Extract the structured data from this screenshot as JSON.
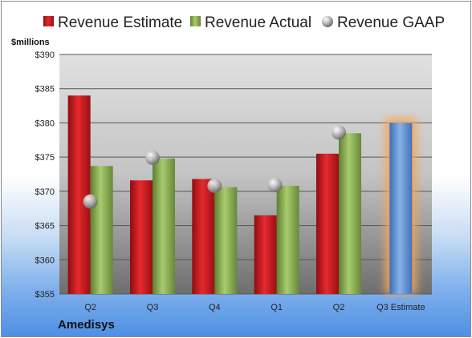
{
  "chart_data": {
    "type": "bar",
    "ylabel": "$millions",
    "ylim": [
      355,
      390
    ],
    "yticks": [
      "$355",
      "$360",
      "$365",
      "$370",
      "$375",
      "$380",
      "$385",
      "$390"
    ],
    "categories": [
      "Q2",
      "Q3",
      "Q4",
      "Q1",
      "Q2",
      "Q3 Estimate"
    ],
    "series": [
      {
        "name": "Revenue Estimate",
        "color": "#c8161c",
        "values": [
          384.0,
          371.6,
          371.8,
          366.5,
          375.5,
          null
        ]
      },
      {
        "name": "Revenue Actual",
        "color": "#8db554",
        "values": [
          373.7,
          374.8,
          370.6,
          370.8,
          378.5,
          null
        ]
      },
      {
        "name": "Revenue GAAP",
        "color": "#a9a9a9",
        "values": [
          368.5,
          374.9,
          370.8,
          370.9,
          378.6,
          null
        ]
      }
    ],
    "highlight": {
      "category": "Q3 Estimate",
      "value": 380.0,
      "color": "#5b8fd4",
      "glow": "#f5a55a"
    },
    "legend": "top",
    "grid": true
  },
  "company": "Amedisys"
}
